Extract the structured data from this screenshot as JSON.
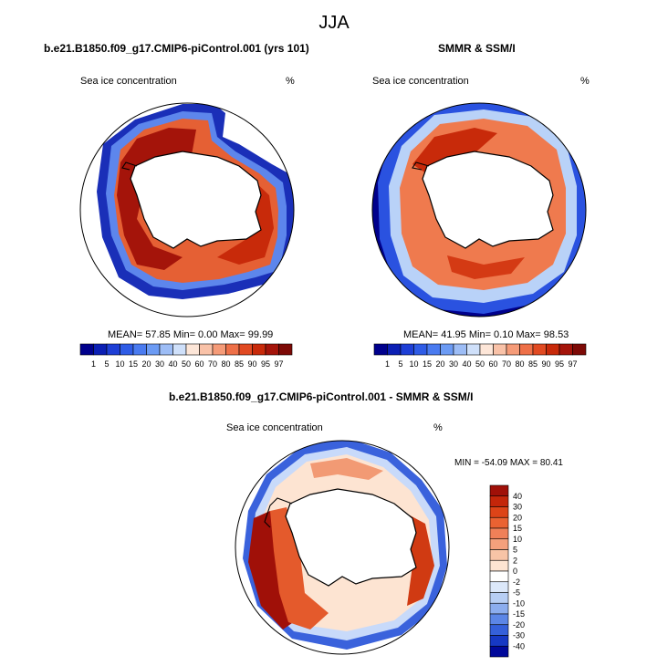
{
  "title": "JJA",
  "panels": [
    {
      "id": "model",
      "title": "b.e21.B1850.f09_g17.CMIP6-piControl.001 (yrs 101)",
      "left_label": "Sea ice concentration",
      "right_label": "%",
      "stats": "MEAN=  57.85  Min=   0.00  Max=  99.99"
    },
    {
      "id": "obs",
      "title": "SMMR & SSM/I",
      "left_label": "Sea ice concentration",
      "right_label": "%",
      "stats": "MEAN=  41.95  Min=   0.10  Max=  98.53"
    },
    {
      "id": "diff",
      "title": "b.e21.B1850.f09_g17.CMIP6-piControl.001 - SMMR & SSM/I",
      "left_label": "Sea ice concentration",
      "right_label": "%",
      "stats": "MIN = -54.09 MAX =  80.41"
    }
  ],
  "colorbar_main": {
    "labels": [
      "1",
      "5",
      "10",
      "15",
      "20",
      "30",
      "40",
      "50",
      "60",
      "70",
      "80",
      "85",
      "90",
      "95",
      "97"
    ],
    "colors": [
      "#00008c",
      "#0b1fb4",
      "#1e3fd6",
      "#2f5ce6",
      "#4a7bf0",
      "#6c9bf4",
      "#9dbdf6",
      "#cfe0fa",
      "#fde6d8",
      "#f9c2a8",
      "#f59b78",
      "#ee7048",
      "#e14a22",
      "#c82a0a",
      "#a4140a",
      "#7d0a06"
    ]
  },
  "colorbar_diff": {
    "labels": [
      "40",
      "30",
      "20",
      "15",
      "10",
      "5",
      "2",
      "0",
      "-2",
      "-5",
      "-10",
      "-15",
      "-20",
      "-30",
      "-40"
    ],
    "colors": [
      "#a01008",
      "#c4260a",
      "#dd4418",
      "#ea6232",
      "#f08058",
      "#f4a07c",
      "#f8c4a6",
      "#fde4d2",
      "#ffffff",
      "#dce8fa",
      "#b7cef4",
      "#8cadee",
      "#5c86e6",
      "#3560da",
      "#1638c4",
      "#00089a"
    ]
  }
}
